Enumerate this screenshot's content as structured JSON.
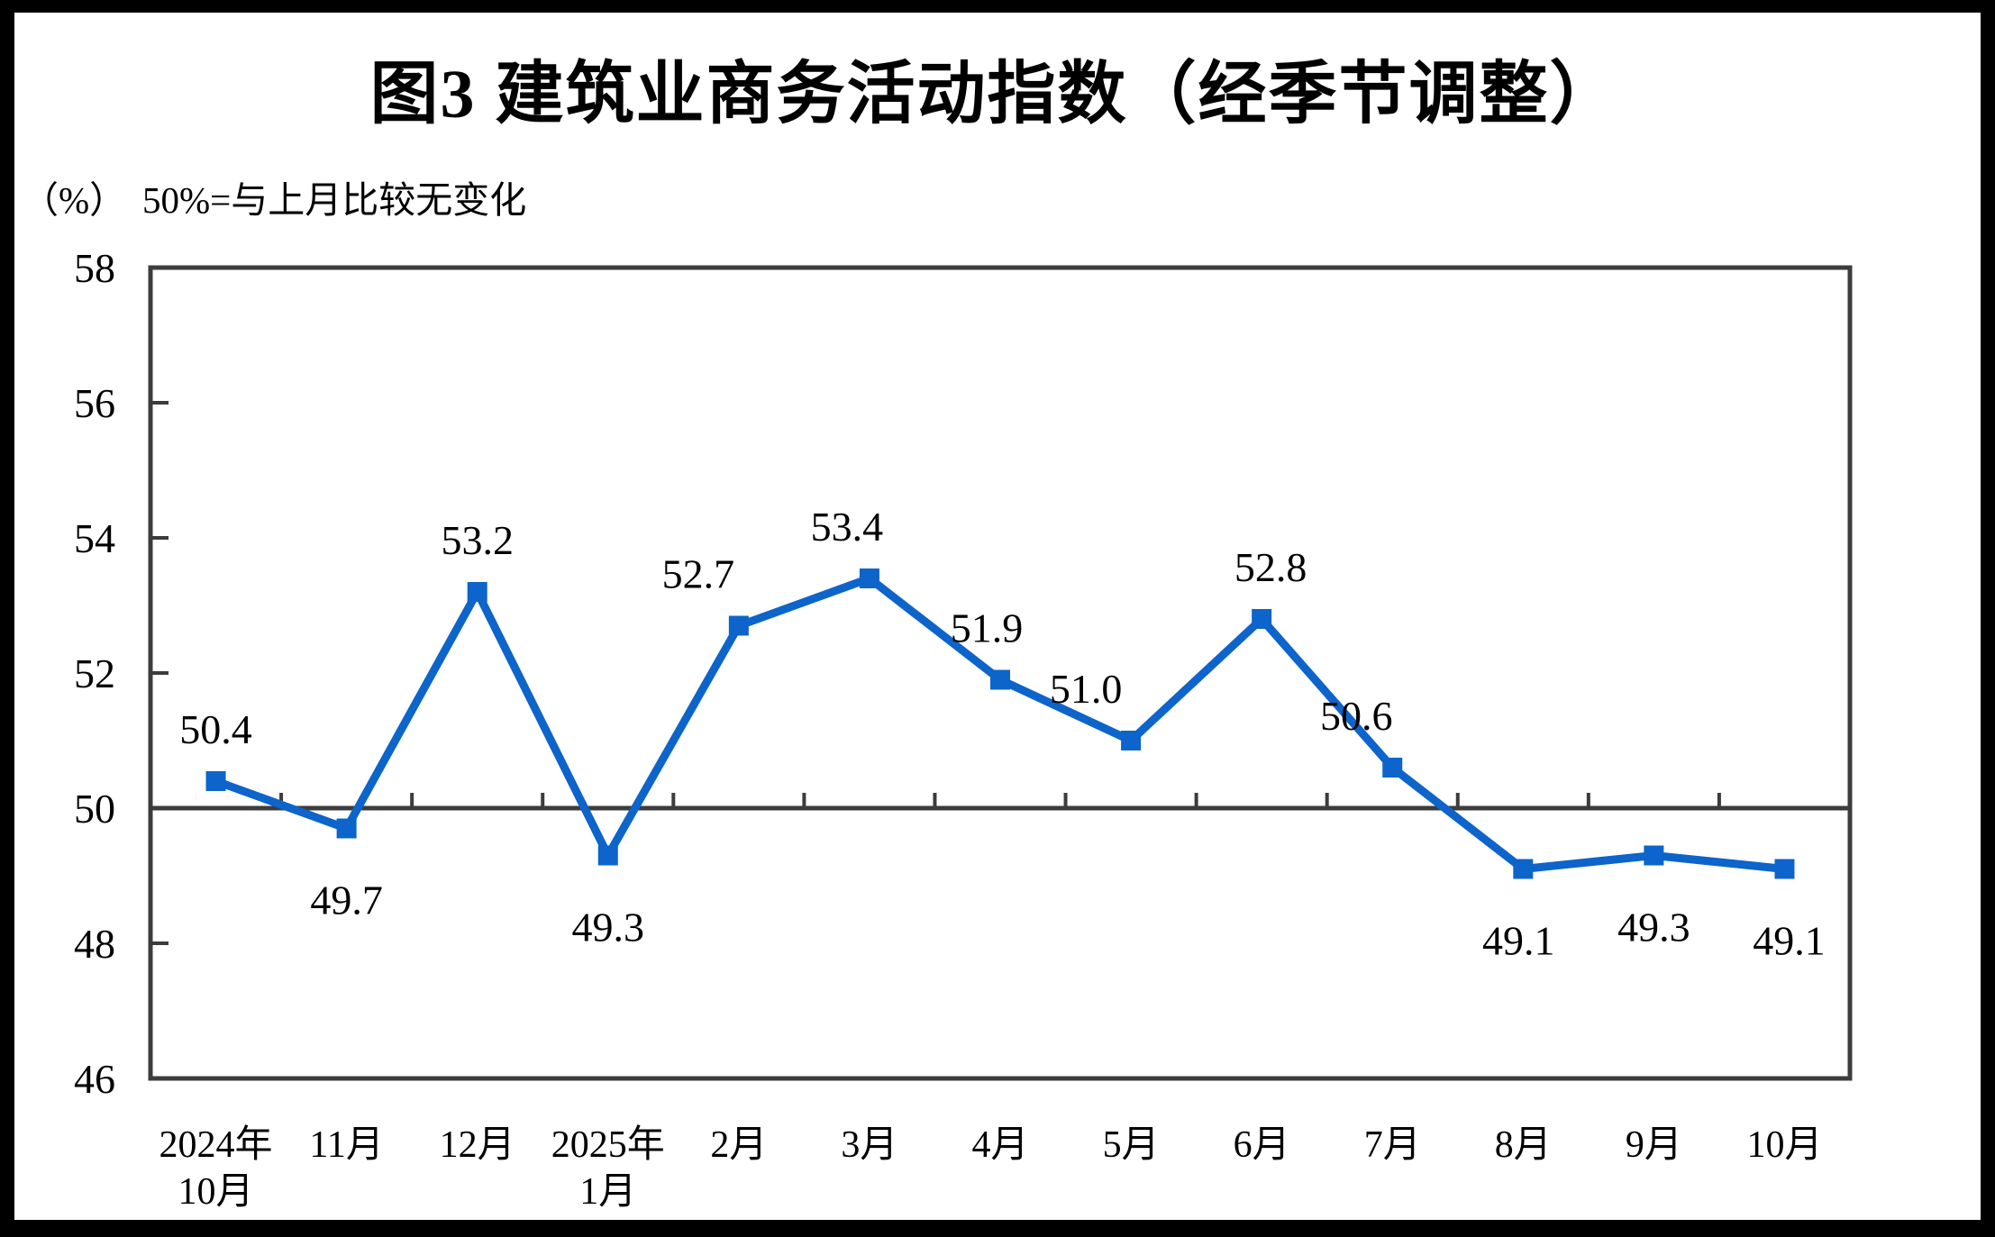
{
  "chart_data": {
    "type": "line",
    "title": "图3  建筑业商务活动指数（经季节调整）",
    "unit_label": "（%）",
    "subtitle": "50%=与上月比较无变化",
    "categories": [
      "2024年10月",
      "11月",
      "12月",
      "2025年1月",
      "2月",
      "3月",
      "4月",
      "5月",
      "6月",
      "7月",
      "8月",
      "9月",
      "10月"
    ],
    "category_lines": [
      [
        "2024年",
        "10月"
      ],
      [
        "11月"
      ],
      [
        "12月"
      ],
      [
        "2025年",
        "1月"
      ],
      [
        "2月"
      ],
      [
        "3月"
      ],
      [
        "4月"
      ],
      [
        "5月"
      ],
      [
        "6月"
      ],
      [
        "7月"
      ],
      [
        "8月"
      ],
      [
        "9月"
      ],
      [
        "10月"
      ]
    ],
    "values": [
      50.4,
      49.7,
      53.2,
      49.3,
      52.7,
      53.4,
      51.9,
      51.0,
      52.8,
      50.6,
      49.1,
      49.3,
      49.1
    ],
    "value_labels": [
      "50.4",
      "49.7",
      "53.2",
      "49.3",
      "52.7",
      "53.4",
      "51.9",
      "51.0",
      "52.8",
      "50.6",
      "49.1",
      "49.3",
      "49.1"
    ],
    "label_positions": [
      "above",
      "below",
      "above",
      "below",
      "above",
      "above",
      "above",
      "above",
      "above",
      "above",
      "below",
      "below",
      "below"
    ],
    "label_dx": [
      0,
      0,
      0,
      0,
      -45,
      -25,
      -15,
      -50,
      10,
      -40,
      -5,
      0,
      5
    ],
    "ylim": [
      46,
      58
    ],
    "yticks": [
      46,
      48,
      50,
      52,
      54,
      56,
      58
    ],
    "baseline_value": 50,
    "grid": "baseline-only",
    "legend": "none",
    "marker": "square",
    "line_color": "#0D64CA",
    "axis_color": "#3C3C3C",
    "text_color": "#000000",
    "background_color": "#FFFFFF",
    "frame_color": "#000000"
  }
}
